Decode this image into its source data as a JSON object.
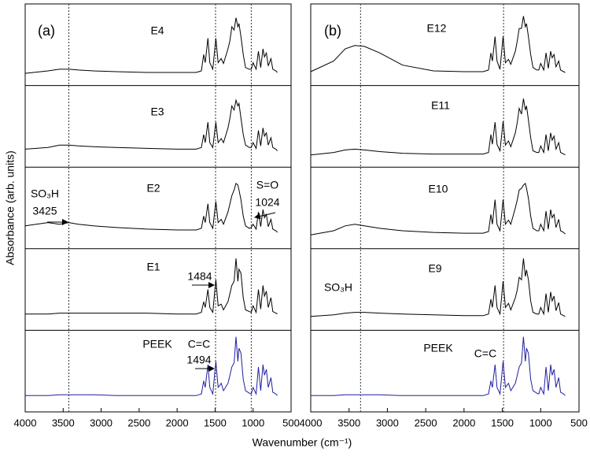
{
  "chart_data": [
    {
      "type": "line",
      "panel_label": "(a)",
      "ylabel": "Absorbance (arb. units)",
      "xlabel": "Wavenumber (cm⁻¹)",
      "xlim": [
        4000,
        500
      ],
      "ylim": [
        0,
        1
      ],
      "xticks": [
        4000,
        3500,
        3000,
        2500,
        2000,
        1500,
        1000,
        500
      ],
      "reference_lines": [
        3425,
        1494,
        1024
      ],
      "x": [
        4000,
        3700,
        3550,
        3425,
        3300,
        3100,
        2800,
        2400,
        2000,
        1750,
        1680,
        1650,
        1630,
        1595,
        1570,
        1530,
        1490,
        1460,
        1420,
        1390,
        1330,
        1305,
        1280,
        1250,
        1225,
        1200,
        1185,
        1160,
        1130,
        1100,
        1050,
        1024,
        1000,
        960,
        930,
        900,
        870,
        850,
        825,
        800,
        765,
        740,
        700,
        680
      ],
      "series": [
        {
          "name": "E4",
          "color": "#000000",
          "annotations": [],
          "values": [
            0.15,
            0.18,
            0.2,
            0.2,
            0.19,
            0.18,
            0.17,
            0.16,
            0.16,
            0.16,
            0.18,
            0.38,
            0.28,
            0.58,
            0.28,
            0.2,
            0.58,
            0.28,
            0.33,
            0.27,
            0.45,
            0.55,
            0.72,
            0.68,
            0.83,
            0.72,
            0.76,
            0.6,
            0.38,
            0.22,
            0.2,
            0.2,
            0.28,
            0.2,
            0.42,
            0.22,
            0.45,
            0.35,
            0.4,
            0.24,
            0.33,
            0.2,
            0.18,
            0.16
          ]
        },
        {
          "name": "E3",
          "color": "#000000",
          "annotations": [],
          "values": [
            0.22,
            0.24,
            0.27,
            0.27,
            0.26,
            0.25,
            0.24,
            0.23,
            0.22,
            0.22,
            0.24,
            0.4,
            0.3,
            0.55,
            0.3,
            0.24,
            0.55,
            0.3,
            0.35,
            0.3,
            0.48,
            0.6,
            0.75,
            0.7,
            0.82,
            0.75,
            0.78,
            0.6,
            0.4,
            0.27,
            0.24,
            0.24,
            0.3,
            0.23,
            0.45,
            0.26,
            0.48,
            0.38,
            0.42,
            0.27,
            0.36,
            0.24,
            0.22,
            0.2
          ]
        },
        {
          "name": "E2",
          "color": "#000000",
          "annotations": [
            "SO₃H",
            "3425",
            "S=O",
            "1024"
          ],
          "values": [
            0.28,
            0.32,
            0.3,
            0.32,
            0.3,
            0.28,
            0.26,
            0.24,
            0.23,
            0.23,
            0.25,
            0.4,
            0.32,
            0.55,
            0.32,
            0.25,
            0.58,
            0.32,
            0.36,
            0.3,
            0.45,
            0.55,
            0.65,
            0.72,
            0.8,
            0.78,
            0.72,
            0.6,
            0.4,
            0.28,
            0.25,
            0.26,
            0.3,
            0.24,
            0.45,
            0.27,
            0.48,
            0.38,
            0.42,
            0.27,
            0.36,
            0.24,
            0.22,
            0.2
          ]
        },
        {
          "name": "E1",
          "color": "#000000",
          "annotations": [
            "1484"
          ],
          "values": [
            0.2,
            0.2,
            0.21,
            0.21,
            0.21,
            0.21,
            0.21,
            0.21,
            0.2,
            0.2,
            0.22,
            0.35,
            0.28,
            0.5,
            0.28,
            0.22,
            0.62,
            0.3,
            0.32,
            0.25,
            0.35,
            0.45,
            0.55,
            0.6,
            0.88,
            0.6,
            0.75,
            0.7,
            0.4,
            0.25,
            0.23,
            0.22,
            0.3,
            0.22,
            0.5,
            0.26,
            0.55,
            0.42,
            0.48,
            0.28,
            0.4,
            0.23,
            0.21,
            0.2
          ]
        },
        {
          "name": "PEEK",
          "color": "#1f1fa0",
          "annotations": [
            "C=C",
            "1494"
          ],
          "values": [
            0.2,
            0.2,
            0.21,
            0.21,
            0.21,
            0.21,
            0.2,
            0.2,
            0.2,
            0.2,
            0.22,
            0.38,
            0.3,
            0.58,
            0.3,
            0.22,
            0.62,
            0.3,
            0.35,
            0.26,
            0.35,
            0.45,
            0.55,
            0.6,
            0.92,
            0.62,
            0.78,
            0.72,
            0.4,
            0.26,
            0.23,
            0.22,
            0.3,
            0.22,
            0.55,
            0.26,
            0.58,
            0.45,
            0.52,
            0.3,
            0.42,
            0.24,
            0.22,
            0.2
          ]
        }
      ]
    },
    {
      "type": "line",
      "panel_label": "(b)",
      "xlim": [
        4000,
        500
      ],
      "ylim": [
        0,
        1
      ],
      "xticks": [
        4000,
        3500,
        3000,
        2500,
        2000,
        1500,
        1000,
        500
      ],
      "reference_lines": [
        3350,
        1484
      ],
      "x": [
        4000,
        3700,
        3550,
        3425,
        3300,
        3100,
        2800,
        2400,
        2000,
        1750,
        1680,
        1650,
        1630,
        1595,
        1570,
        1530,
        1490,
        1460,
        1420,
        1390,
        1330,
        1305,
        1280,
        1250,
        1225,
        1200,
        1185,
        1160,
        1130,
        1100,
        1050,
        1024,
        1000,
        960,
        930,
        900,
        870,
        850,
        825,
        800,
        765,
        740,
        700,
        680
      ],
      "series": [
        {
          "name": "E12",
          "color": "#000000",
          "annotations": [],
          "values": [
            0.17,
            0.3,
            0.45,
            0.49,
            0.48,
            0.4,
            0.25,
            0.18,
            0.17,
            0.17,
            0.19,
            0.4,
            0.3,
            0.6,
            0.3,
            0.2,
            0.6,
            0.28,
            0.32,
            0.26,
            0.42,
            0.55,
            0.7,
            0.7,
            0.85,
            0.72,
            0.76,
            0.6,
            0.38,
            0.22,
            0.19,
            0.19,
            0.27,
            0.19,
            0.4,
            0.21,
            0.42,
            0.34,
            0.38,
            0.23,
            0.3,
            0.19,
            0.17,
            0.16
          ]
        },
        {
          "name": "E11",
          "color": "#000000",
          "annotations": [],
          "values": [
            0.15,
            0.18,
            0.21,
            0.22,
            0.21,
            0.19,
            0.17,
            0.16,
            0.16,
            0.16,
            0.18,
            0.4,
            0.28,
            0.55,
            0.28,
            0.2,
            0.56,
            0.27,
            0.32,
            0.25,
            0.42,
            0.55,
            0.72,
            0.65,
            0.84,
            0.7,
            0.75,
            0.58,
            0.36,
            0.2,
            0.18,
            0.18,
            0.26,
            0.18,
            0.4,
            0.2,
            0.42,
            0.33,
            0.38,
            0.22,
            0.3,
            0.18,
            0.16,
            0.15
          ]
        },
        {
          "name": "E10",
          "color": "#000000",
          "annotations": [],
          "values": [
            0.17,
            0.22,
            0.28,
            0.3,
            0.28,
            0.25,
            0.22,
            0.2,
            0.19,
            0.19,
            0.21,
            0.42,
            0.3,
            0.6,
            0.3,
            0.22,
            0.6,
            0.3,
            0.35,
            0.3,
            0.5,
            0.6,
            0.72,
            0.74,
            0.78,
            0.8,
            0.74,
            0.62,
            0.4,
            0.25,
            0.22,
            0.22,
            0.3,
            0.22,
            0.46,
            0.24,
            0.48,
            0.38,
            0.42,
            0.26,
            0.36,
            0.22,
            0.2,
            0.18
          ]
        },
        {
          "name": "E9",
          "color": "#000000",
          "annotations": [
            "SO₃H"
          ],
          "values": [
            0.17,
            0.19,
            0.21,
            0.22,
            0.22,
            0.21,
            0.2,
            0.19,
            0.18,
            0.18,
            0.2,
            0.38,
            0.28,
            0.55,
            0.28,
            0.2,
            0.6,
            0.28,
            0.33,
            0.25,
            0.4,
            0.5,
            0.65,
            0.62,
            0.88,
            0.66,
            0.74,
            0.62,
            0.36,
            0.22,
            0.2,
            0.2,
            0.28,
            0.2,
            0.45,
            0.22,
            0.47,
            0.36,
            0.42,
            0.24,
            0.34,
            0.2,
            0.18,
            0.17
          ]
        },
        {
          "name": "PEEK",
          "color": "#1f1fa0",
          "annotations": [
            "C=C"
          ],
          "values": [
            0.2,
            0.2,
            0.21,
            0.21,
            0.21,
            0.21,
            0.2,
            0.2,
            0.2,
            0.2,
            0.22,
            0.38,
            0.3,
            0.58,
            0.3,
            0.22,
            0.62,
            0.3,
            0.35,
            0.26,
            0.35,
            0.45,
            0.55,
            0.6,
            0.92,
            0.62,
            0.78,
            0.72,
            0.4,
            0.26,
            0.23,
            0.22,
            0.3,
            0.22,
            0.55,
            0.26,
            0.58,
            0.45,
            0.52,
            0.3,
            0.42,
            0.24,
            0.22,
            0.2
          ]
        }
      ]
    }
  ]
}
